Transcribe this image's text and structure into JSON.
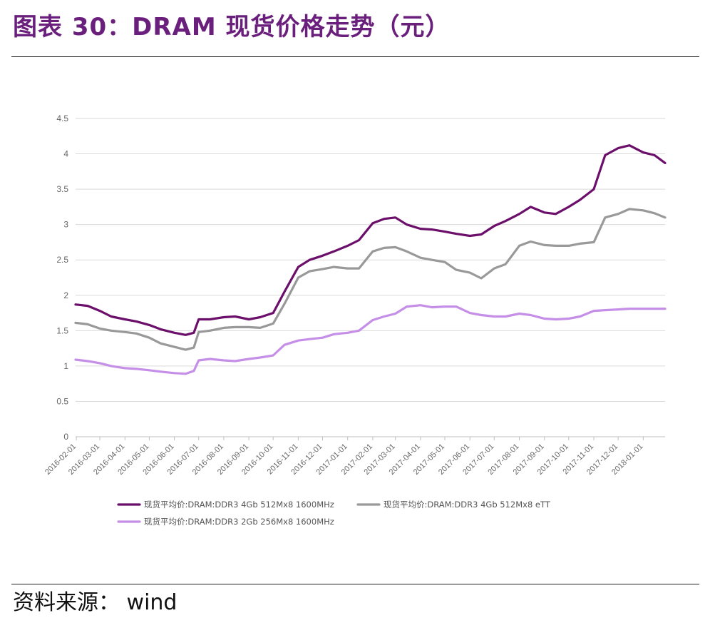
{
  "header": {
    "title": "图表 30：DRAM 现货价格走势（元）"
  },
  "footer": {
    "source": "资料来源： wind"
  },
  "chart_data": {
    "type": "line",
    "title": "",
    "xlabel": "",
    "ylabel": "",
    "ylim": [
      0,
      4.5
    ],
    "y_ticks": [
      "0",
      "0.5",
      "1",
      "1.5",
      "2",
      "2.5",
      "3",
      "3.5",
      "4",
      "4.5"
    ],
    "grid": "horizontal",
    "legend_position": "bottom-left",
    "x_ticks": [
      "2016-02-01",
      "2016-03-01",
      "2016-04-01",
      "2016-05-01",
      "2016-06-01",
      "2016-07-01",
      "2016-08-01",
      "2016-09-01",
      "2016-10-01",
      "2016-11-01",
      "2016-12-01",
      "2017-01-01",
      "2017-02-01",
      "2017-03-01",
      "2017-04-01",
      "2017-05-01",
      "2017-06-01",
      "2017-07-01",
      "2017-08-01",
      "2017-09-01",
      "2017-10-01",
      "2017-11-01",
      "2017-12-01",
      "2018-01-01"
    ],
    "x": [
      "2016-01-31",
      "2016-02-15",
      "2016-03-01",
      "2016-03-15",
      "2016-04-01",
      "2016-04-15",
      "2016-05-01",
      "2016-05-15",
      "2016-06-01",
      "2016-06-15",
      "2016-06-25",
      "2016-07-01",
      "2016-07-15",
      "2016-08-01",
      "2016-08-15",
      "2016-09-01",
      "2016-09-15",
      "2016-10-01",
      "2016-10-15",
      "2016-11-01",
      "2016-11-15",
      "2016-12-01",
      "2016-12-15",
      "2017-01-01",
      "2017-01-15",
      "2017-02-01",
      "2017-02-15",
      "2017-03-01",
      "2017-03-15",
      "2017-04-01",
      "2017-04-15",
      "2017-05-01",
      "2017-05-15",
      "2017-06-01",
      "2017-06-15",
      "2017-07-01",
      "2017-07-15",
      "2017-08-01",
      "2017-08-15",
      "2017-09-01",
      "2017-09-15",
      "2017-10-01",
      "2017-10-15",
      "2017-11-01",
      "2017-11-15",
      "2017-12-01",
      "2017-12-15",
      "2018-01-01",
      "2018-01-15",
      "2018-01-28"
    ],
    "series": [
      {
        "name": "现货平均价:DRAM:DDR3 4Gb 512Mx8 1600MHz",
        "color": "#6b0f6b",
        "values": [
          1.87,
          1.85,
          1.78,
          1.7,
          1.66,
          1.63,
          1.58,
          1.52,
          1.47,
          1.44,
          1.47,
          1.66,
          1.66,
          1.69,
          1.7,
          1.66,
          1.69,
          1.75,
          2.05,
          2.4,
          2.5,
          2.56,
          2.62,
          2.7,
          2.78,
          3.02,
          3.08,
          3.1,
          3.0,
          2.94,
          2.93,
          2.9,
          2.87,
          2.84,
          2.86,
          2.98,
          3.05,
          3.15,
          3.25,
          3.17,
          3.15,
          3.25,
          3.35,
          3.5,
          3.98,
          4.08,
          4.12,
          4.02,
          3.98,
          3.87
        ]
      },
      {
        "name": "现货平均价:DRAM:DDR3 4Gb 512Mx8 eTT",
        "color": "#999999",
        "values": [
          1.61,
          1.59,
          1.53,
          1.5,
          1.48,
          1.46,
          1.4,
          1.32,
          1.27,
          1.23,
          1.26,
          1.48,
          1.5,
          1.54,
          1.55,
          1.55,
          1.54,
          1.6,
          1.88,
          2.25,
          2.34,
          2.37,
          2.4,
          2.38,
          2.38,
          2.62,
          2.67,
          2.68,
          2.62,
          2.53,
          2.5,
          2.47,
          2.36,
          2.32,
          2.24,
          2.38,
          2.44,
          2.7,
          2.76,
          2.71,
          2.7,
          2.7,
          2.73,
          2.75,
          3.1,
          3.15,
          3.22,
          3.2,
          3.16,
          3.1
        ]
      },
      {
        "name": "现货平均价:DRAM:DDR3 2Gb 256Mx8 1600MHz",
        "color": "#c58fe8",
        "values": [
          1.09,
          1.07,
          1.04,
          1.0,
          0.97,
          0.96,
          0.94,
          0.92,
          0.9,
          0.89,
          0.93,
          1.08,
          1.1,
          1.08,
          1.07,
          1.1,
          1.12,
          1.15,
          1.3,
          1.36,
          1.38,
          1.4,
          1.45,
          1.47,
          1.5,
          1.65,
          1.7,
          1.74,
          1.84,
          1.86,
          1.83,
          1.84,
          1.84,
          1.75,
          1.72,
          1.7,
          1.7,
          1.74,
          1.72,
          1.67,
          1.66,
          1.67,
          1.7,
          1.78,
          1.79,
          1.8,
          1.81,
          1.81,
          1.81,
          1.81
        ]
      }
    ]
  }
}
